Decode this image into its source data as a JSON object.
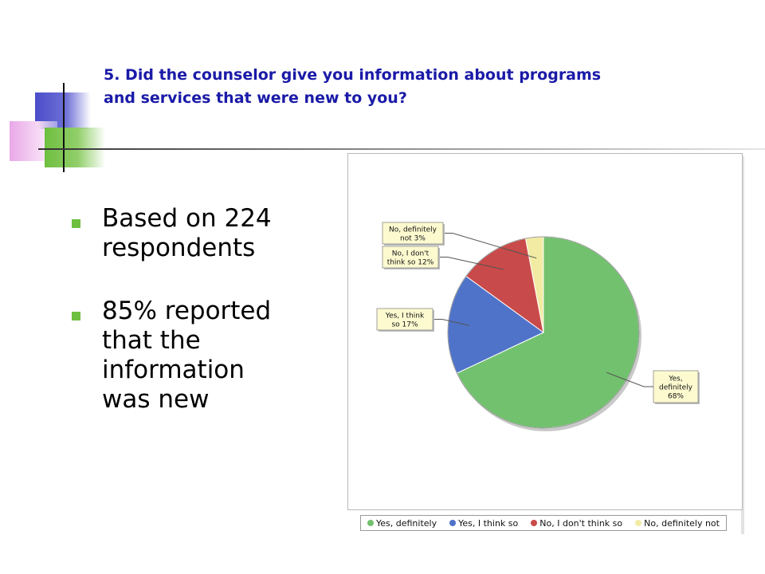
{
  "slide": {
    "title_line1": "5. Did the counselor give you information about programs",
    "title_line2": "and services that were new to you?",
    "bullets": [
      {
        "line1": "Based on 224",
        "line2": "respondents"
      },
      {
        "line1": "85% reported",
        "line2": "that the",
        "line3": "information",
        "line4": "was new"
      }
    ],
    "accent_colors": {
      "title": "#1a1aa8",
      "bullet": "#6fbf40"
    }
  },
  "chart_data": {
    "type": "pie",
    "categories": [
      "Yes, definitely",
      "Yes, I think so",
      "No, I don't think so",
      "No, definitely not"
    ],
    "values": [
      68,
      17,
      12,
      3
    ],
    "unit": "%",
    "colors": [
      "#72c16e",
      "#4f73c8",
      "#c94a4a",
      "#f2eba4"
    ],
    "slice_labels": [
      {
        "line1": "Yes,",
        "line2": "definitely",
        "line3": "68%"
      },
      {
        "line1": "Yes, I think",
        "line2": "so  17%"
      },
      {
        "line1": "No, I don't",
        "line2": "think so  12%"
      },
      {
        "line1": "No, definitely",
        "line2": "not   3%"
      }
    ],
    "legend": {
      "placement": "bottom",
      "entries": [
        "Yes, definitely",
        "Yes, I think so",
        "No, I don't think so",
        "No, definitely not"
      ]
    }
  }
}
